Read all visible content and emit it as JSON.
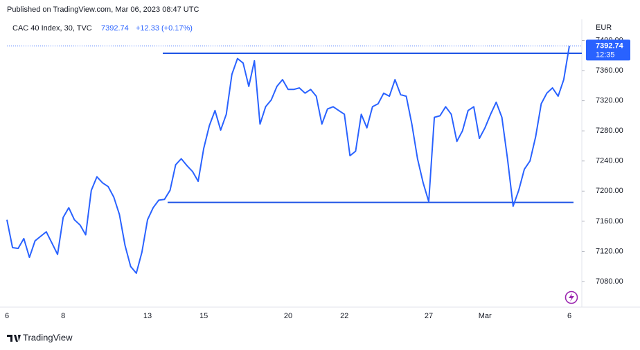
{
  "header": {
    "published": "Published on TradingView.com, Mar 06, 2023 08:47 UTC",
    "brand": "TradingView"
  },
  "chart_data": {
    "type": "line",
    "title": "CAC 40 Index, 30, TVC",
    "last_price": 7392.74,
    "change": "+12.33 (+0.17%)",
    "countdown": "12:35",
    "currency": "EUR",
    "categories": [
      "6",
      null,
      null,
      null,
      null,
      null,
      null,
      null,
      null,
      null,
      "8",
      null,
      null,
      null,
      null,
      null,
      null,
      null,
      null,
      null,
      null,
      null,
      null,
      null,
      null,
      "13",
      null,
      null,
      null,
      null,
      null,
      null,
      null,
      null,
      null,
      "15",
      null,
      null,
      null,
      null,
      null,
      null,
      null,
      null,
      null,
      null,
      null,
      null,
      null,
      null,
      "20",
      null,
      null,
      null,
      null,
      null,
      null,
      null,
      null,
      null,
      "22",
      null,
      null,
      null,
      null,
      null,
      null,
      null,
      null,
      null,
      null,
      null,
      null,
      null,
      null,
      "27",
      null,
      null,
      null,
      null,
      null,
      null,
      null,
      null,
      null,
      "Mar",
      null,
      null,
      null,
      null,
      null,
      null,
      null,
      null,
      null,
      null,
      null,
      null,
      null,
      null,
      "6"
    ],
    "series": [
      {
        "name": "CAC 40 Index",
        "color": "#2962ff",
        "values": [
          7162,
          7125,
          7124,
          7137,
          7112,
          7134,
          7140,
          7146,
          7131,
          7116,
          7165,
          7178,
          7162,
          7155,
          7142,
          7201,
          7219,
          7211,
          7206,
          7192,
          7169,
          7128,
          7100,
          7091,
          7119,
          7162,
          7178,
          7188,
          7189,
          7201,
          7235,
          7243,
          7234,
          7226,
          7213,
          7257,
          7287,
          7307,
          7281,
          7302,
          7355,
          7376,
          7370,
          7339,
          7373,
          7289,
          7312,
          7321,
          7339,
          7348,
          7335,
          7335,
          7337,
          7330,
          7335,
          7326,
          7289,
          7309,
          7312,
          7307,
          7302,
          7247,
          7253,
          7302,
          7284,
          7312,
          7316,
          7330,
          7326,
          7348,
          7328,
          7326,
          7289,
          7243,
          7211,
          7186,
          7298,
          7300,
          7312,
          7302,
          7266,
          7280,
          7307,
          7312,
          7270,
          7284,
          7302,
          7318,
          7298,
          7243,
          7180,
          7201,
          7229,
          7240,
          7272,
          7316,
          7330,
          7337,
          7326,
          7348,
          7392.74
        ]
      }
    ],
    "levels": [
      7383,
      7185
    ],
    "ylim": [
      7046,
      7428
    ],
    "yticks": [
      {
        "value": 7080,
        "label": "7080.00"
      },
      {
        "value": 7120,
        "label": "7120.00"
      },
      {
        "value": 7160,
        "label": "7160.00"
      },
      {
        "value": 7200,
        "label": "7200.00"
      },
      {
        "value": 7240,
        "label": "7240.00"
      },
      {
        "value": 7280,
        "label": "7280.00"
      },
      {
        "value": 7320,
        "label": "7320.00"
      },
      {
        "value": 7360,
        "label": "7360.00"
      },
      {
        "value": 7400,
        "label": "7400.00"
      }
    ],
    "level_color": "#1e53e5"
  }
}
